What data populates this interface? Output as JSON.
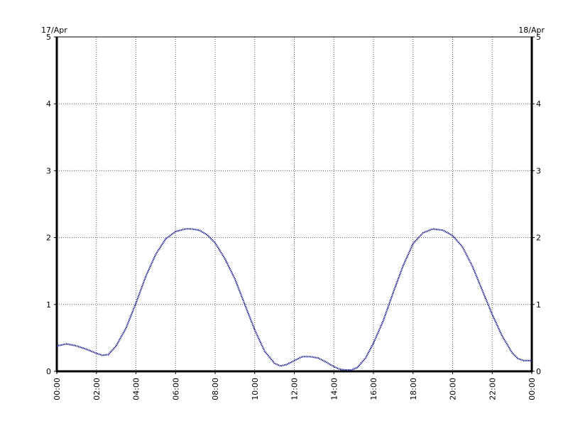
{
  "chart_data": {
    "type": "line",
    "date_left": "17/Apr",
    "date_right": "18/Apr",
    "x_ticks": [
      "00:00",
      "02:00",
      "04:00",
      "06:00",
      "08:00",
      "10:00",
      "12:00",
      "14:00",
      "16:00",
      "18:00",
      "20:00",
      "22:00",
      "00:00"
    ],
    "y_ticks": [
      "0",
      "1",
      "2",
      "3",
      "4",
      "5"
    ],
    "xlim": [
      0,
      24
    ],
    "ylim": [
      0,
      5
    ],
    "grid": true,
    "line_color": "#00008b",
    "series": [
      {
        "x": [
          0,
          0.5,
          1,
          1.5,
          2,
          2.3,
          2.6,
          3,
          3.5,
          4,
          4.5,
          5,
          5.5,
          6,
          6.5,
          6.8,
          7.2,
          7.6,
          8,
          8.5,
          9,
          9.5,
          10,
          10.5,
          11,
          11.3,
          11.6,
          12,
          12.4,
          12.8,
          13.2,
          13.6,
          14,
          14.3,
          14.6,
          14.9,
          15.2,
          15.6,
          16,
          16.5,
          17,
          17.5,
          18,
          18.5,
          19,
          19.5,
          20,
          20.5,
          21,
          21.5,
          22,
          22.5,
          23,
          23.3,
          23.6,
          24
        ],
        "y": [
          0.38,
          0.41,
          0.38,
          0.33,
          0.27,
          0.24,
          0.25,
          0.38,
          0.65,
          1.02,
          1.42,
          1.75,
          1.98,
          2.09,
          2.13,
          2.13,
          2.11,
          2.04,
          1.92,
          1.68,
          1.38,
          1.0,
          0.62,
          0.3,
          0.12,
          0.08,
          0.1,
          0.16,
          0.22,
          0.22,
          0.2,
          0.14,
          0.07,
          0.03,
          0.02,
          0.02,
          0.06,
          0.2,
          0.42,
          0.76,
          1.18,
          1.58,
          1.91,
          2.07,
          2.13,
          2.11,
          2.03,
          1.86,
          1.57,
          1.21,
          0.85,
          0.53,
          0.28,
          0.19,
          0.16,
          0.16
        ]
      }
    ]
  }
}
